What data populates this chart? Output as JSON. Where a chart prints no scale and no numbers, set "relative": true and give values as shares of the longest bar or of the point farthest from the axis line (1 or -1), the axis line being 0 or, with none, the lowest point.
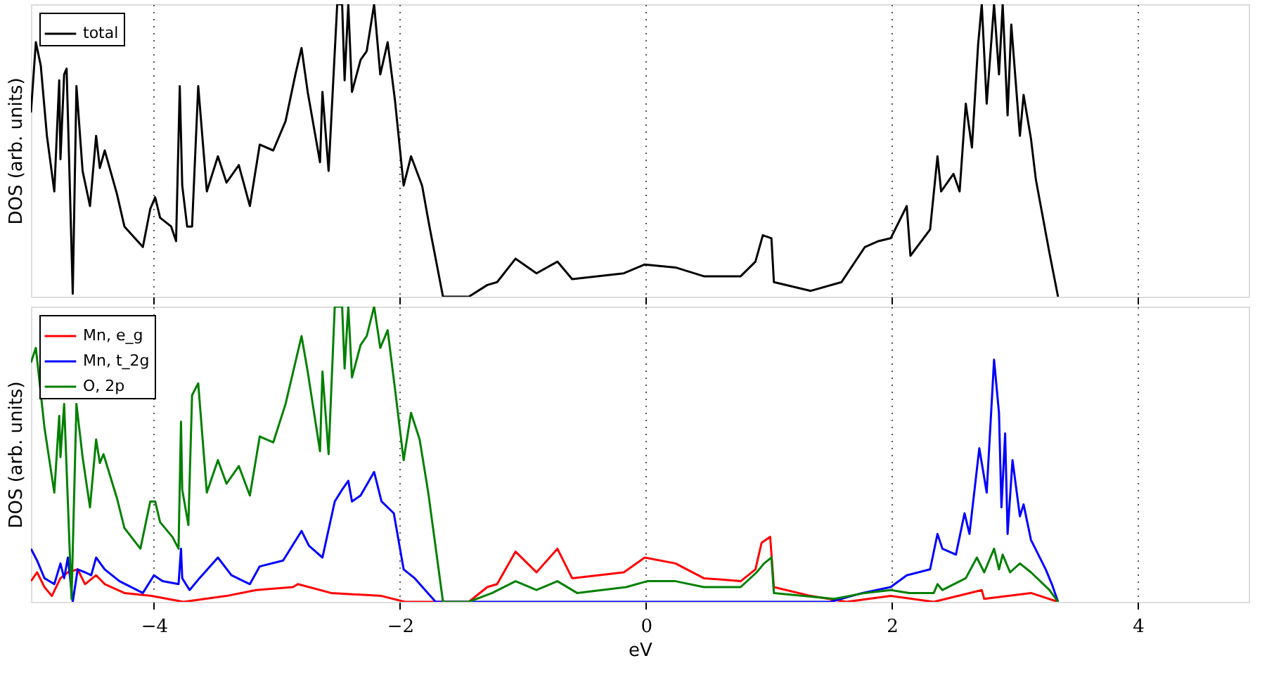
{
  "chart_data": [
    {
      "type": "line",
      "relative": true,
      "ylabel": "DOS (arb. units)",
      "xlim": [
        -5,
        4.9
      ],
      "xticks": [
        -4,
        -2,
        0,
        2,
        4
      ],
      "grid": "x",
      "legend": "top left",
      "tick_labels": false,
      "series": [
        {
          "name": "total",
          "color": "#000000",
          "x": [
            -5.0,
            -4.96,
            -4.92,
            -4.87,
            -4.81,
            -4.77,
            -4.76,
            -4.73,
            -4.71,
            -4.66,
            -4.63,
            -4.58,
            -4.52,
            -4.47,
            -4.44,
            -4.4,
            -4.3,
            -4.24,
            -4.09,
            -4.03,
            -3.99,
            -3.95,
            -3.86,
            -3.82,
            -3.79,
            -3.77,
            -3.73,
            -3.69,
            -3.64,
            -3.57,
            -3.48,
            -3.41,
            -3.31,
            -3.22,
            -3.14,
            -3.03,
            -2.93,
            -2.85,
            -2.8,
            -2.75,
            -2.65,
            -2.63,
            -2.58,
            -2.51,
            -2.47,
            -2.45,
            -2.42,
            -2.39,
            -2.32,
            -2.27,
            -2.21,
            -2.16,
            -2.1,
            -2.04,
            -1.97,
            -1.91,
            -1.82,
            -1.76,
            -1.65,
            -1.44,
            -1.29,
            -1.21,
            -1.06,
            -0.89,
            -0.72,
            -0.6,
            -0.18,
            -0.01,
            0.24,
            0.47,
            0.77,
            0.89,
            0.95,
            1.02,
            1.04,
            1.34,
            1.59,
            1.78,
            1.89,
            1.99,
            2.12,
            2.15,
            2.31,
            2.37,
            2.4,
            2.5,
            2.55,
            2.6,
            2.65,
            2.7,
            2.73,
            2.77,
            2.83,
            2.87,
            2.9,
            2.94,
            2.97,
            3.04,
            3.07,
            3.13,
            3.17,
            3.28,
            3.35
          ],
          "values": [
            0.63,
            0.87,
            0.79,
            0.55,
            0.36,
            0.74,
            0.47,
            0.76,
            0.78,
            0.01,
            0.72,
            0.43,
            0.31,
            0.55,
            0.44,
            0.5,
            0.35,
            0.24,
            0.17,
            0.3,
            0.34,
            0.27,
            0.24,
            0.19,
            0.72,
            0.38,
            0.24,
            0.24,
            0.72,
            0.36,
            0.48,
            0.39,
            0.45,
            0.31,
            0.52,
            0.5,
            0.6,
            0.76,
            0.85,
            0.7,
            0.46,
            0.7,
            0.43,
            1.0,
            1.0,
            0.74,
            1.0,
            0.7,
            0.81,
            0.84,
            1.0,
            0.76,
            0.87,
            0.67,
            0.38,
            0.48,
            0.38,
            0.24,
            0.0,
            0.0,
            0.04,
            0.05,
            0.13,
            0.08,
            0.12,
            0.06,
            0.08,
            0.11,
            0.1,
            0.07,
            0.07,
            0.12,
            0.21,
            0.2,
            0.05,
            0.02,
            0.05,
            0.17,
            0.19,
            0.2,
            0.31,
            0.14,
            0.23,
            0.48,
            0.36,
            0.42,
            0.36,
            0.66,
            0.51,
            0.86,
            1.0,
            0.66,
            1.0,
            0.76,
            1.0,
            0.62,
            0.93,
            0.55,
            0.69,
            0.54,
            0.4,
            0.15,
            0.0
          ]
        }
      ]
    },
    {
      "type": "line",
      "relative": true,
      "ylabel": "DOS (arb. units)",
      "xlabel": "eV",
      "xlim": [
        -5,
        4.9
      ],
      "xticks": [
        -4,
        -2,
        0,
        2,
        4
      ],
      "grid": "x",
      "legend": "top left",
      "tick_labels": "x",
      "series": [
        {
          "name": "Mn, e_g",
          "color": "#ff0000",
          "x": [
            -5.0,
            -4.95,
            -4.89,
            -4.83,
            -4.76,
            -4.7,
            -4.62,
            -4.56,
            -4.47,
            -4.4,
            -4.24,
            -4.02,
            -3.76,
            -3.41,
            -3.17,
            -2.87,
            -2.83,
            -2.56,
            -2.15,
            -1.96,
            -1.44,
            -1.29,
            -1.21,
            -1.06,
            -0.89,
            -0.72,
            -0.6,
            -0.18,
            -0.01,
            0.24,
            0.47,
            0.77,
            0.89,
            0.94,
            1.01,
            1.04,
            1.34,
            1.63,
            1.99,
            2.34,
            2.73,
            2.75,
            3.13,
            3.35
          ],
          "values": [
            0.07,
            0.1,
            0.05,
            0.02,
            0.08,
            0.1,
            0.11,
            0.06,
            0.09,
            0.06,
            0.03,
            0.02,
            0.0,
            0.02,
            0.04,
            0.05,
            0.06,
            0.03,
            0.02,
            0.0,
            0.0,
            0.05,
            0.06,
            0.17,
            0.1,
            0.18,
            0.08,
            0.1,
            0.15,
            0.13,
            0.08,
            0.07,
            0.11,
            0.2,
            0.22,
            0.05,
            0.02,
            0.0,
            0.02,
            0.0,
            0.04,
            0.01,
            0.03,
            0.0
          ]
        },
        {
          "name": "Mn, t_2g",
          "color": "#0000ff",
          "x": [
            -5.0,
            -4.95,
            -4.89,
            -4.81,
            -4.76,
            -4.73,
            -4.7,
            -4.66,
            -4.62,
            -4.56,
            -4.51,
            -4.47,
            -4.4,
            -4.28,
            -4.09,
            -4.0,
            -3.93,
            -3.8,
            -3.78,
            -3.77,
            -3.71,
            -3.63,
            -3.48,
            -3.37,
            -3.22,
            -3.14,
            -2.95,
            -2.8,
            -2.74,
            -2.63,
            -2.53,
            -2.47,
            -2.42,
            -2.39,
            -2.32,
            -2.21,
            -2.15,
            -2.05,
            -1.97,
            -1.88,
            -1.71,
            1.5,
            1.76,
            1.99,
            2.12,
            2.31,
            2.37,
            2.41,
            2.52,
            2.59,
            2.63,
            2.71,
            2.77,
            2.83,
            2.87,
            2.89,
            2.92,
            2.94,
            2.98,
            3.04,
            3.07,
            3.13,
            3.25,
            3.3,
            3.35
          ],
          "values": [
            0.18,
            0.14,
            0.08,
            0.06,
            0.13,
            0.08,
            0.15,
            0.0,
            0.11,
            0.1,
            0.09,
            0.15,
            0.11,
            0.07,
            0.03,
            0.09,
            0.07,
            0.06,
            0.18,
            0.08,
            0.04,
            0.08,
            0.15,
            0.09,
            0.06,
            0.12,
            0.14,
            0.24,
            0.19,
            0.15,
            0.34,
            0.38,
            0.41,
            0.34,
            0.36,
            0.44,
            0.34,
            0.3,
            0.11,
            0.08,
            0.0,
            0.0,
            0.03,
            0.05,
            0.09,
            0.11,
            0.23,
            0.18,
            0.16,
            0.3,
            0.23,
            0.52,
            0.37,
            0.82,
            0.64,
            0.32,
            0.57,
            0.23,
            0.48,
            0.29,
            0.33,
            0.21,
            0.11,
            0.06,
            0.0
          ]
        },
        {
          "name": "O, 2p",
          "color": "#008000",
          "x": [
            -5.0,
            -4.96,
            -4.89,
            -4.81,
            -4.77,
            -4.76,
            -4.73,
            -4.67,
            -4.63,
            -4.58,
            -4.52,
            -4.47,
            -4.44,
            -4.41,
            -4.3,
            -4.24,
            -4.11,
            -4.03,
            -3.99,
            -3.95,
            -3.85,
            -3.8,
            -3.78,
            -3.77,
            -3.72,
            -3.69,
            -3.64,
            -3.57,
            -3.48,
            -3.41,
            -3.31,
            -3.22,
            -3.14,
            -3.03,
            -2.93,
            -2.8,
            -2.75,
            -2.65,
            -2.63,
            -2.58,
            -2.53,
            -2.47,
            -2.45,
            -2.42,
            -2.39,
            -2.32,
            -2.27,
            -2.21,
            -2.16,
            -2.1,
            -2.04,
            -1.97,
            -1.91,
            -1.84,
            -1.77,
            -1.65,
            -1.44,
            -1.25,
            -1.06,
            -0.89,
            -0.72,
            -0.56,
            -0.16,
            0.01,
            0.24,
            0.47,
            0.77,
            0.9,
            0.96,
            1.02,
            1.04,
            1.53,
            1.78,
            1.99,
            2.14,
            2.34,
            2.37,
            2.41,
            2.6,
            2.69,
            2.75,
            2.83,
            2.87,
            2.9,
            2.96,
            3.04,
            3.13,
            3.28,
            3.35
          ],
          "values": [
            0.81,
            0.86,
            0.59,
            0.37,
            0.63,
            0.49,
            0.67,
            0.01,
            0.67,
            0.49,
            0.32,
            0.55,
            0.47,
            0.5,
            0.35,
            0.25,
            0.18,
            0.34,
            0.34,
            0.27,
            0.22,
            0.18,
            0.61,
            0.38,
            0.26,
            0.7,
            0.74,
            0.37,
            0.48,
            0.4,
            0.46,
            0.36,
            0.56,
            0.54,
            0.67,
            0.9,
            0.78,
            0.51,
            0.78,
            0.5,
            1.0,
            1.0,
            0.79,
            1.0,
            0.76,
            0.87,
            0.9,
            1.0,
            0.86,
            0.92,
            0.72,
            0.48,
            0.64,
            0.55,
            0.37,
            0.0,
            0.0,
            0.03,
            0.07,
            0.04,
            0.07,
            0.03,
            0.05,
            0.07,
            0.07,
            0.05,
            0.05,
            0.1,
            0.13,
            0.15,
            0.03,
            0.01,
            0.03,
            0.04,
            0.03,
            0.03,
            0.06,
            0.04,
            0.08,
            0.15,
            0.1,
            0.18,
            0.11,
            0.16,
            0.1,
            0.13,
            0.1,
            0.04,
            0.0
          ]
        }
      ]
    }
  ]
}
